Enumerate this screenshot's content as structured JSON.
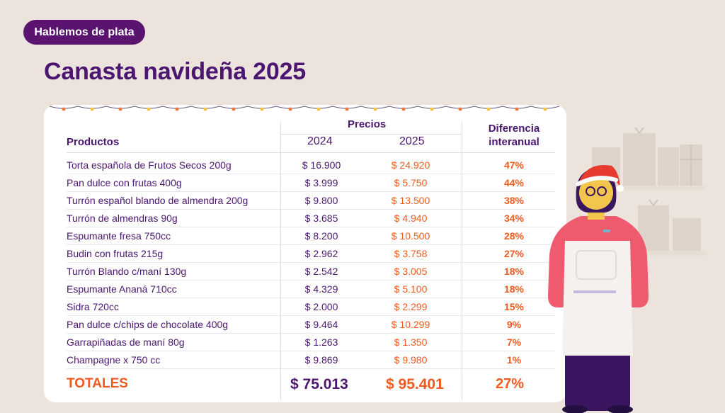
{
  "badge": "Hablemos de plata",
  "title": "Canasta navideña 2025",
  "table": {
    "group_header": "Precios",
    "col_products": "Productos",
    "col_2024": "2024",
    "col_2025": "2025",
    "col_diff_line1": "Diferencia",
    "col_diff_line2": "interanual",
    "rows": [
      {
        "product": "Torta española de Frutos Secos 200g",
        "p2024": "$ 16.900",
        "p2025": "$ 24.920",
        "diff": "47%"
      },
      {
        "product": "Pan dulce con frutas 400g",
        "p2024": "$ 3.999",
        "p2025": "$ 5.750",
        "diff": "44%"
      },
      {
        "product": "Turrón español blando de almendra 200g",
        "p2024": "$ 9.800",
        "p2025": "$ 13.500",
        "diff": "38%"
      },
      {
        "product": "Turrón de almendras 90g",
        "p2024": "$ 3.685",
        "p2025": "$ 4.940",
        "diff": "34%"
      },
      {
        "product": "Espumante fresa 750cc",
        "p2024": "$ 8.200",
        "p2025": "$ 10.500",
        "diff": "28%"
      },
      {
        "product": "Budin con frutas 215g",
        "p2024": "$ 2.962",
        "p2025": "$ 3.758",
        "diff": "27%"
      },
      {
        "product": "Turrón Blando c/maní 130g",
        "p2024": "$ 2.542",
        "p2025": "$ 3.005",
        "diff": "18%"
      },
      {
        "product": "Espumante Ananá 710cc",
        "p2024": "$ 4.329",
        "p2025": "$ 5.100",
        "diff": "18%"
      },
      {
        "product": "Sidra 720cc",
        "p2024": "$ 2.000",
        "p2025": "$ 2.299",
        "diff": "15%"
      },
      {
        "product": "Pan dulce c/chips de chocolate 400g",
        "p2024": "$ 9.464",
        "p2025": "$ 10.299",
        "diff": "9%"
      },
      {
        "product": "Garrapiñadas de maní 80g",
        "p2024": "$ 1.263",
        "p2025": "$ 1.350",
        "diff": "7%"
      },
      {
        "product": "Champagne x 750 cc",
        "p2024": "$ 9.869",
        "p2025": "$ 9.980",
        "diff": "1%"
      }
    ],
    "totals": {
      "label": "TOTALES",
      "p2024": "$ 75.013",
      "p2025": "$ 95.401",
      "diff": "27%"
    }
  },
  "colors": {
    "background": "#ece4dc",
    "brand_purple": "#4b1670",
    "badge_purple": "#5a1470",
    "accent_orange": "#ef5a1e",
    "card": "#ffffff"
  }
}
